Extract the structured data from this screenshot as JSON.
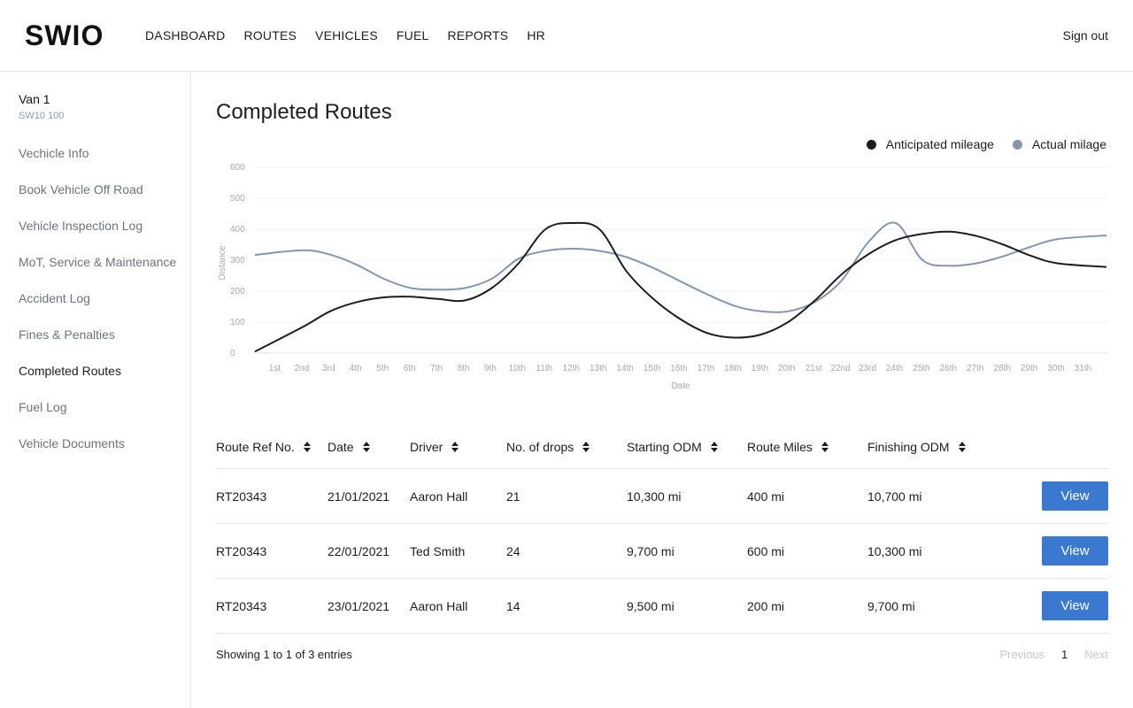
{
  "app": {
    "logo": "SWIO",
    "sign_out": "Sign out"
  },
  "nav": [
    "DASHBOARD",
    "ROUTES",
    "VEHICLES",
    "FUEL",
    "REPORTS",
    "HR"
  ],
  "vehicle": {
    "name": "Van 1",
    "reg": "SW10 100"
  },
  "sidebar": {
    "items": [
      {
        "label": "Vechicle Info",
        "active": false
      },
      {
        "label": "Book Vehicle Off Road",
        "active": false
      },
      {
        "label": "Vehicle Inspection Log",
        "active": false
      },
      {
        "label": "MoT, Service & Maintenance",
        "active": false
      },
      {
        "label": "Accident Log",
        "active": false
      },
      {
        "label": "Fines & Penalties",
        "active": false
      },
      {
        "label": "Completed Routes",
        "active": true
      },
      {
        "label": "Fuel Log",
        "active": false
      },
      {
        "label": "Vehicle Documents",
        "active": false
      }
    ]
  },
  "page": {
    "title": "Completed Routes"
  },
  "chart_data": {
    "type": "line",
    "xlabel": "Date",
    "ylabel": "Distance",
    "ylim": [
      0,
      600
    ],
    "yticks": [
      0,
      100,
      200,
      300,
      400,
      500,
      600
    ],
    "grid": true,
    "legend_position": "top-right",
    "categories": [
      "1st",
      "2nd",
      "3rd",
      "4th",
      "5th",
      "6th",
      "7th",
      "8th",
      "9th",
      "10th",
      "11th",
      "12th",
      "13th",
      "14th",
      "15th",
      "16th",
      "17th",
      "18th",
      "19th",
      "20th",
      "21st",
      "22nd",
      "23rd",
      "24th",
      "25th",
      "26th",
      "27th",
      "28th",
      "29th",
      "30th",
      "31th"
    ],
    "series": [
      {
        "name": "Anticipated mileage",
        "color": "#1d1d1f",
        "values": [
          5,
          85,
          135,
          165,
          180,
          182,
          175,
          170,
          210,
          290,
          400,
          420,
          400,
          265,
          175,
          110,
          65,
          50,
          60,
          100,
          170,
          255,
          320,
          365,
          385,
          392,
          378,
          350,
          315,
          290,
          278
        ]
      },
      {
        "name": "Actual milage",
        "color": "#8796ae",
        "values": [
          317,
          332,
          318,
          285,
          240,
          210,
          205,
          210,
          240,
          305,
          330,
          337,
          330,
          310,
          275,
          232,
          190,
          153,
          135,
          135,
          165,
          235,
          360,
          420,
          300,
          282,
          290,
          313,
          343,
          368,
          380
        ]
      }
    ]
  },
  "table": {
    "headers": [
      "Route Ref No.",
      "Date",
      "Driver",
      "No. of drops",
      "Starting ODM",
      "Route Miles",
      "Finishing ODM"
    ],
    "rows": [
      [
        "RT20343",
        "21/01/2021",
        "Aaron Hall",
        "21",
        "10,300 mi",
        "400 mi",
        "10,700 mi"
      ],
      [
        "RT20343",
        "22/01/2021",
        "Ted Smith",
        "24",
        "9,700 mi",
        "600 mi",
        "10,300 mi"
      ],
      [
        "RT20343",
        "23/01/2021",
        "Aaron Hall",
        "14",
        "9,500 mi",
        "200 mi",
        "9,700 mi"
      ]
    ],
    "action_label": "View",
    "action_color": "#3b78cf"
  },
  "pagination": {
    "info": "Showing 1 to 1 of 3 entries",
    "previous": "Previous",
    "current": "1",
    "next": "Next"
  }
}
